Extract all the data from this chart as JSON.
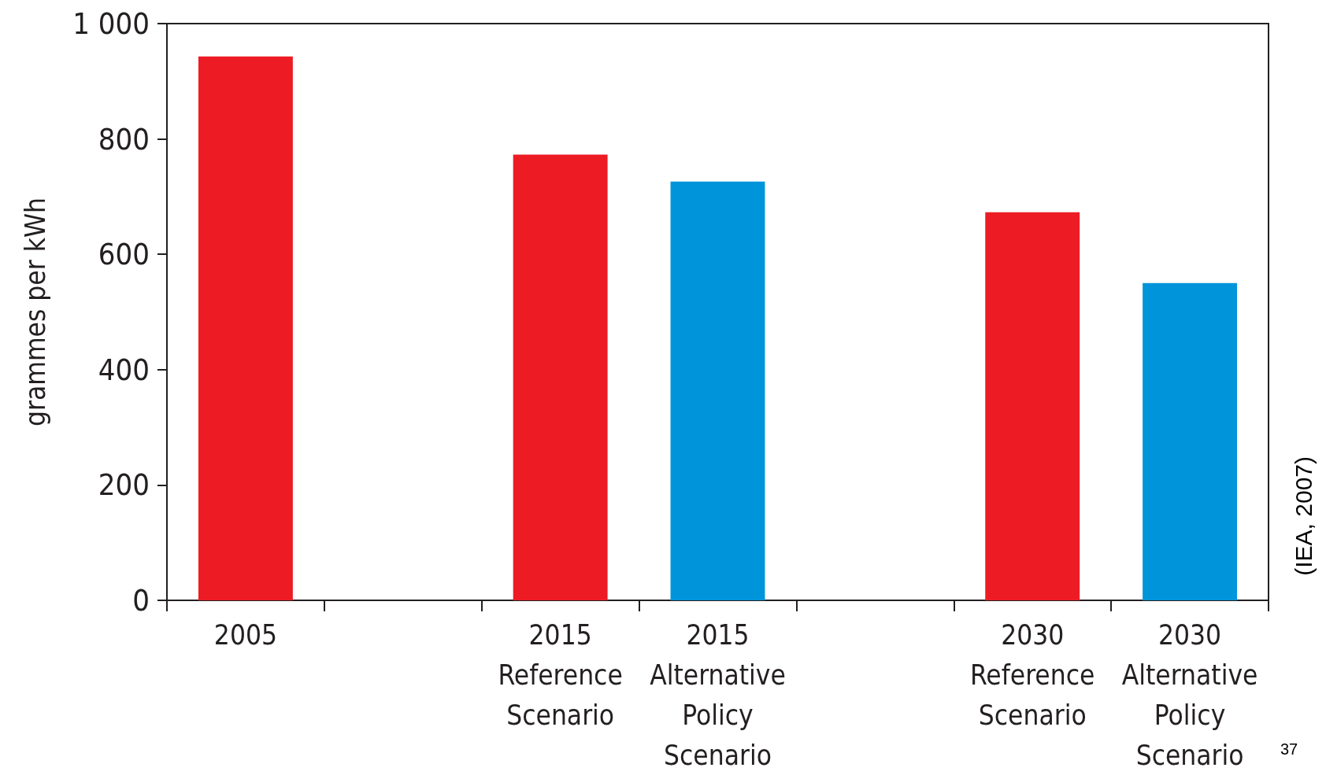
{
  "chart_data": {
    "type": "bar",
    "categories": [
      "2005",
      null,
      "2015\nReference\nScenario",
      "2015\nAlternative\nPolicy\nScenario",
      null,
      "2030\nReference\nScenario",
      "2030\nAlternative\nPolicy\nScenario"
    ],
    "values": [
      943,
      null,
      773,
      726,
      null,
      673,
      550
    ],
    "colors": [
      "#ed1c24",
      null,
      "#ed1c24",
      "#0095da",
      null,
      "#ed1c24",
      "#0095da"
    ],
    "ylabel": "grammes per kWh",
    "ylim": [
      0,
      1000
    ],
    "yticks": [
      0,
      200,
      400,
      600,
      800,
      {
        "value": 1000,
        "label": "1 000"
      }
    ],
    "grid": false,
    "annotations": [
      "(IEA, 2007)",
      "37"
    ]
  }
}
